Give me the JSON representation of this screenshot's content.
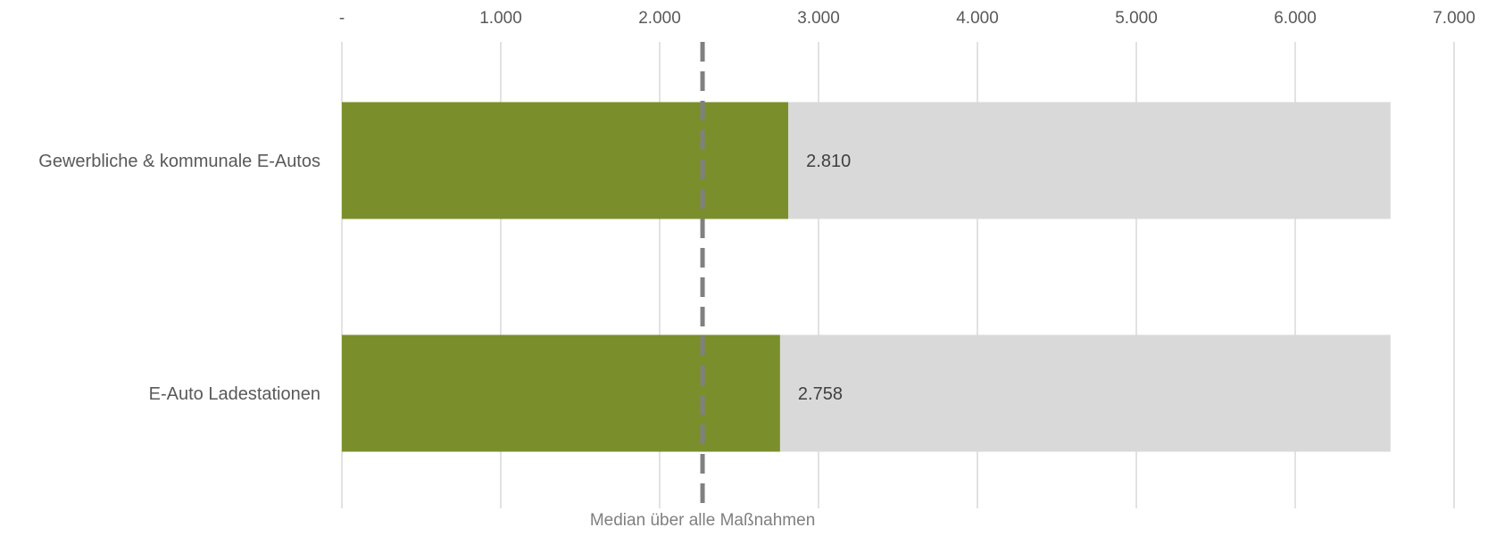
{
  "chart_data": {
    "type": "bar",
    "orientation": "horizontal",
    "categories": [
      "Gewerbliche & kommunale E-Autos",
      "E-Auto Ladestationen"
    ],
    "series": [
      {
        "values": [
          2810,
          2758
        ],
        "color": "#7a8f2b"
      },
      {
        "values": [
          3790,
          3842
        ],
        "color": "#d9d9d9"
      }
    ],
    "stacked": true,
    "data_labels": [
      "2.810",
      "2.758"
    ],
    "xlim": [
      0,
      7000
    ],
    "x_ticks": [
      0,
      1000,
      2000,
      3000,
      4000,
      5000,
      6000,
      7000
    ],
    "x_tick_labels": [
      "-",
      "1.000",
      "2.000",
      "3.000",
      "4.000",
      "5.000",
      "6.000",
      "7.000"
    ],
    "x_axis_position": "top",
    "grid": true,
    "reference_line": {
      "label": "Median über alle Maßnahmen",
      "value": 2270,
      "style": "dashed",
      "color": "#808080"
    },
    "colors": {
      "bar": "#7a8f2b",
      "track": "#d9d9d9",
      "grid": "#d9d9d9",
      "text": "#595959",
      "median": "#808080"
    }
  }
}
